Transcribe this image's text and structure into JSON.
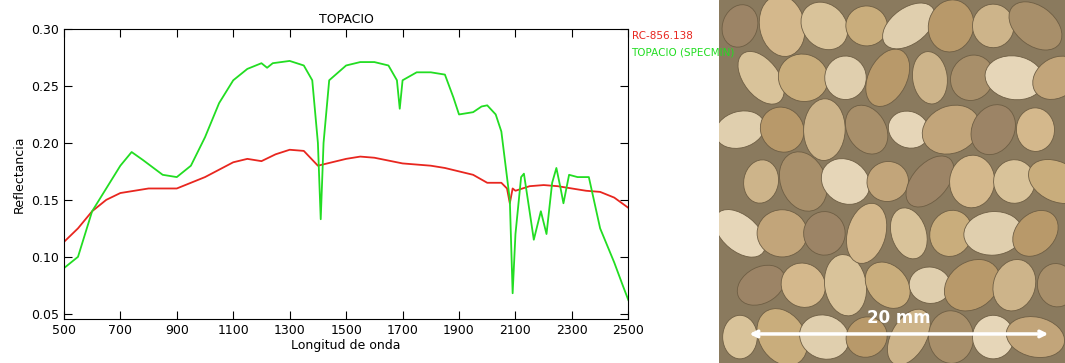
{
  "chart_data": {
    "type": "line",
    "title": "TOPACIO",
    "x_label": "Longitud de onda",
    "y_label": "Reflectancia",
    "xlim": [
      500,
      2500
    ],
    "ylim": [
      0.045,
      0.3
    ],
    "xticks": [
      500,
      700,
      900,
      1100,
      1300,
      1500,
      1700,
      1900,
      2100,
      2300,
      2500
    ],
    "yticks": [
      0.05,
      {
        "value": 0.1,
        "label": "0.10"
      },
      0.15,
      {
        "value": 0.2,
        "label": "0.20"
      },
      0.25,
      {
        "value": 0.3,
        "label": "0.30"
      }
    ],
    "series": [
      {
        "name": "RC-856.138",
        "color": "#e8261f",
        "x": [
          500,
          550,
          600,
          650,
          700,
          800,
          900,
          1000,
          1100,
          1150,
          1200,
          1250,
          1300,
          1350,
          1400,
          1450,
          1500,
          1550,
          1600,
          1700,
          1800,
          1850,
          1900,
          1950,
          2000,
          2050,
          2070,
          2080,
          2090,
          2100,
          2150,
          2200,
          2250,
          2300,
          2350,
          2400,
          2450,
          2500
        ],
        "values": [
          0.113,
          0.125,
          0.14,
          0.15,
          0.156,
          0.16,
          0.16,
          0.17,
          0.183,
          0.186,
          0.184,
          0.19,
          0.194,
          0.193,
          0.18,
          0.183,
          0.186,
          0.188,
          0.187,
          0.182,
          0.18,
          0.178,
          0.175,
          0.172,
          0.165,
          0.165,
          0.16,
          0.147,
          0.16,
          0.158,
          0.162,
          0.163,
          0.162,
          0.16,
          0.158,
          0.157,
          0.152,
          0.143
        ]
      },
      {
        "name": "TOPACIO (SPECMIN)",
        "color": "#22dd22",
        "x": [
          500,
          550,
          600,
          650,
          700,
          740,
          780,
          850,
          900,
          950,
          1000,
          1050,
          1100,
          1150,
          1200,
          1220,
          1240,
          1300,
          1350,
          1380,
          1400,
          1410,
          1420,
          1440,
          1500,
          1550,
          1600,
          1650,
          1680,
          1690,
          1700,
          1750,
          1800,
          1850,
          1880,
          1900,
          1950,
          1980,
          2000,
          2030,
          2050,
          2080,
          2090,
          2100,
          2120,
          2130,
          2150,
          2165,
          2190,
          2210,
          2230,
          2245,
          2260,
          2270,
          2290,
          2320,
          2360,
          2400,
          2450,
          2480,
          2500
        ],
        "values": [
          0.09,
          0.1,
          0.14,
          0.16,
          0.18,
          0.192,
          0.185,
          0.172,
          0.17,
          0.18,
          0.205,
          0.235,
          0.255,
          0.265,
          0.27,
          0.266,
          0.27,
          0.272,
          0.268,
          0.255,
          0.2,
          0.133,
          0.2,
          0.255,
          0.268,
          0.271,
          0.271,
          0.268,
          0.255,
          0.23,
          0.255,
          0.262,
          0.262,
          0.26,
          0.24,
          0.225,
          0.227,
          0.232,
          0.233,
          0.225,
          0.21,
          0.15,
          0.068,
          0.12,
          0.17,
          0.173,
          0.14,
          0.115,
          0.14,
          0.12,
          0.165,
          0.178,
          0.16,
          0.147,
          0.172,
          0.17,
          0.17,
          0.125,
          0.095,
          0.075,
          0.062
        ]
      }
    ]
  },
  "photo": {
    "scale_bar_label": "20 mm"
  }
}
